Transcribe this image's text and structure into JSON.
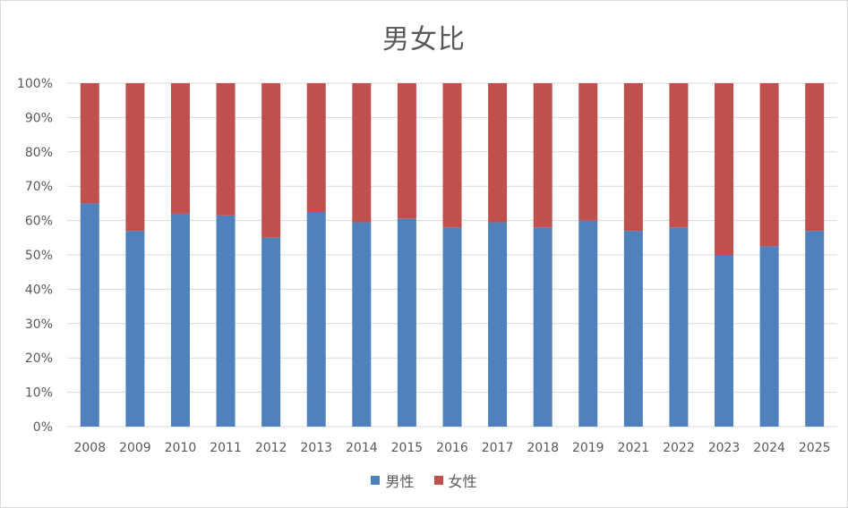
{
  "chart_data": {
    "type": "bar",
    "stacked": "percent",
    "title": "男女比",
    "categories": [
      "2008",
      "2009",
      "2010",
      "2011",
      "2012",
      "2013",
      "2014",
      "2015",
      "2016",
      "2017",
      "2018",
      "2019",
      "2021",
      "2022",
      "2023",
      "2024",
      "2025"
    ],
    "series": [
      {
        "name": "男性",
        "color": "#4f81bd",
        "values": [
          65,
          57,
          62,
          61.5,
          55,
          62.5,
          59.5,
          60.5,
          58,
          59.5,
          58,
          60,
          57,
          58,
          50,
          52.5,
          57
        ]
      },
      {
        "name": "女性",
        "color": "#c0504d",
        "values": [
          35,
          43,
          38,
          38.5,
          45,
          37.5,
          40.5,
          39.5,
          42,
          40.5,
          42,
          40,
          43,
          42,
          50,
          47.5,
          43
        ]
      }
    ],
    "ylim": [
      0,
      100
    ],
    "yticks": [
      "0%",
      "10%",
      "20%",
      "30%",
      "40%",
      "50%",
      "60%",
      "70%",
      "80%",
      "90%",
      "100%"
    ],
    "grid": true,
    "legend_position": "bottom"
  }
}
